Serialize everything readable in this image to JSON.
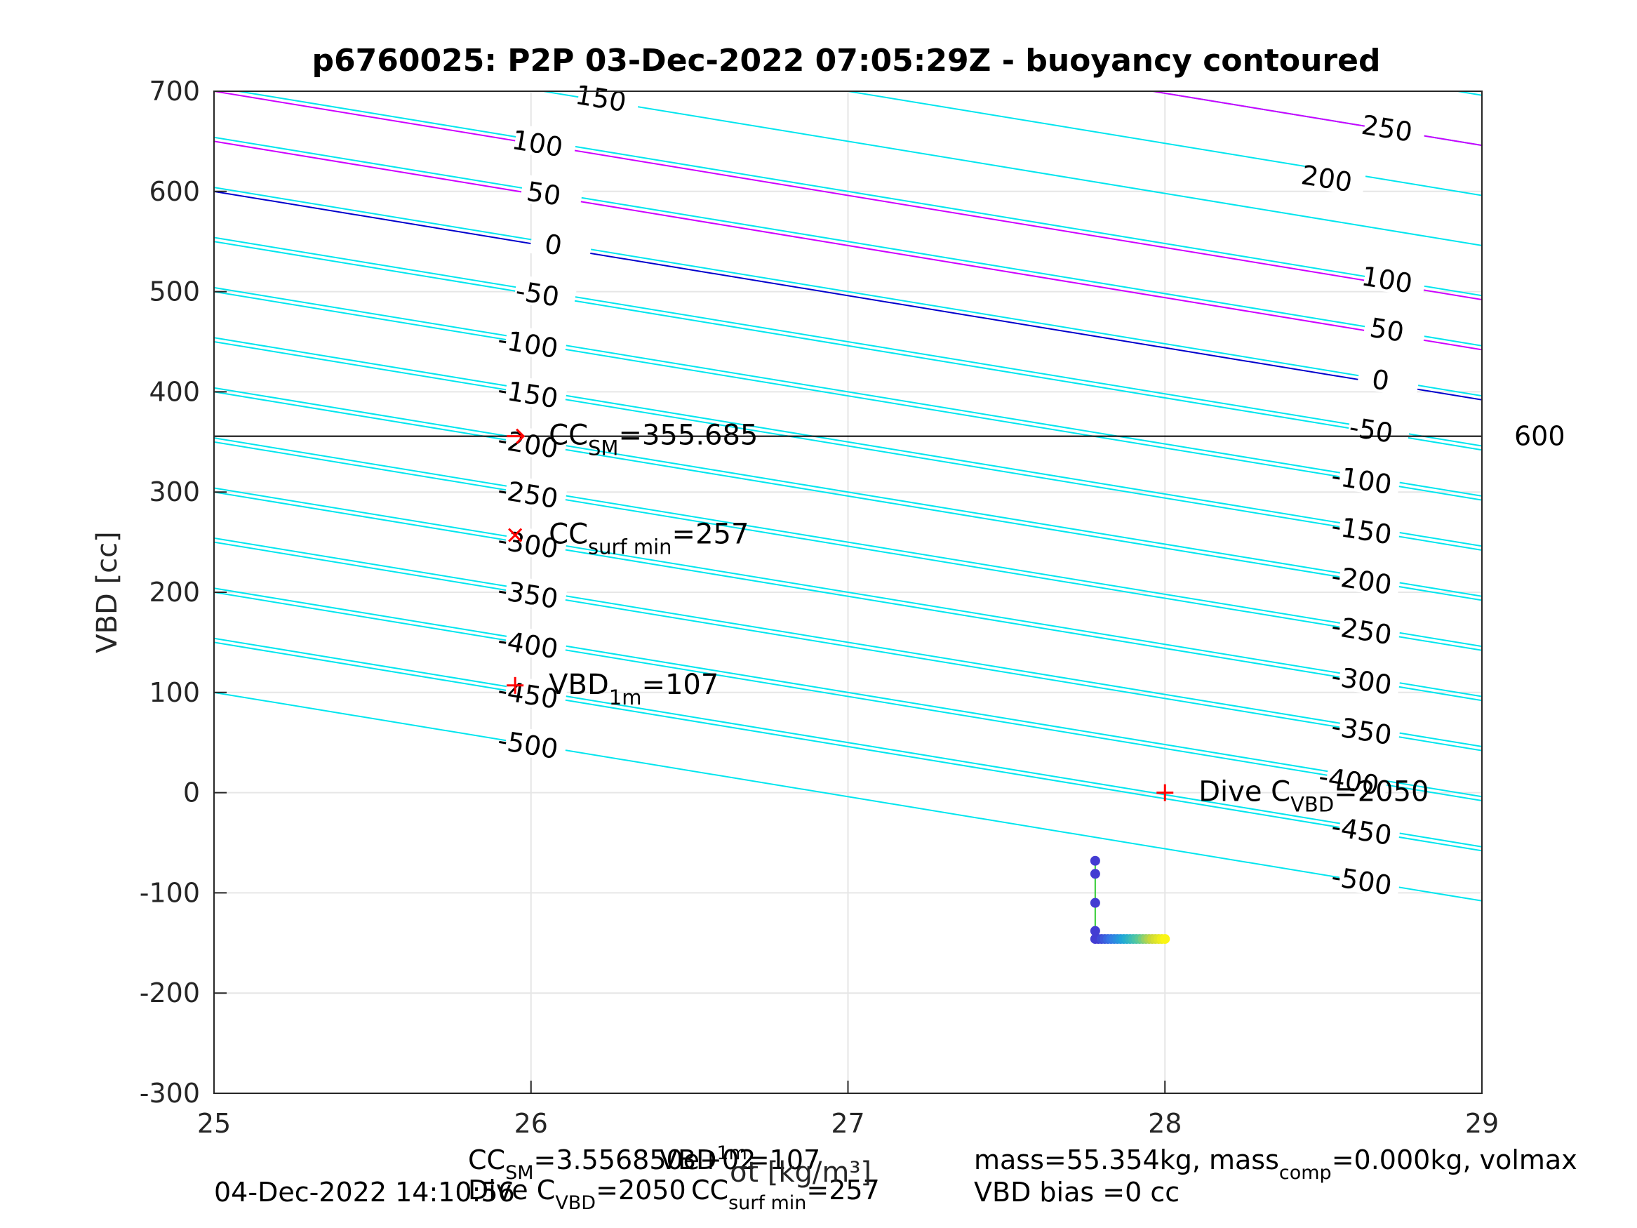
{
  "chart_data": {
    "type": "line",
    "title": "p6760025: P2P 03-Dec-2022 07:05:29Z - buoyancy contoured",
    "xlabel": "σt [kg/m³]",
    "ylabel": "VBD [cc]",
    "xlim": [
      25,
      29
    ],
    "ylim": [
      -300,
      700
    ],
    "x_ticks": [
      "25",
      "26",
      "27",
      "28",
      "29"
    ],
    "y_ticks": [
      "-300",
      "-200",
      "-100",
      "0",
      "100",
      "200",
      "300",
      "400",
      "500",
      "600",
      "700"
    ],
    "grid": true,
    "legend": "none",
    "contours": {
      "slope_cc_per_unit": -52,
      "intercepts_at_x25": [
        700,
        650,
        600,
        550,
        500,
        450,
        400,
        350,
        300,
        250,
        200,
        150,
        100
      ],
      "extended_intercepts_at_x25": [
        954,
        904,
        854,
        804,
        754,
        704,
        654,
        604,
        554,
        504,
        454,
        404,
        354,
        304,
        254,
        204,
        154
      ],
      "positive_color": "#cc00ff",
      "zero_color": "#0000cc",
      "negative_color": "#00e5ee",
      "left_labels": [
        {
          "text": "150",
          "x": 26.22,
          "y": 692
        },
        {
          "text": "100",
          "x": 26.02,
          "y": 647
        },
        {
          "text": "50",
          "x": 26.04,
          "y": 597
        },
        {
          "text": "0",
          "x": 26.07,
          "y": 546
        },
        {
          "text": "-50",
          "x": 26.02,
          "y": 497
        },
        {
          "text": "-100",
          "x": 25.99,
          "y": 447
        },
        {
          "text": "-150",
          "x": 25.99,
          "y": 397
        },
        {
          "text": "-200",
          "x": 25.99,
          "y": 347
        },
        {
          "text": "-250",
          "x": 25.99,
          "y": 297
        },
        {
          "text": "-300",
          "x": 25.99,
          "y": 247
        },
        {
          "text": "-350",
          "x": 25.99,
          "y": 197
        },
        {
          "text": "-400",
          "x": 25.99,
          "y": 147
        },
        {
          "text": "-450",
          "x": 25.99,
          "y": 97
        },
        {
          "text": "-500",
          "x": 25.99,
          "y": 47
        }
      ],
      "right_labels": [
        {
          "text": "250",
          "x": 28.7,
          "y": 662
        },
        {
          "text": "200",
          "x": 28.51,
          "y": 612
        },
        {
          "text": "100",
          "x": 28.7,
          "y": 511
        },
        {
          "text": "50",
          "x": 28.7,
          "y": 461
        },
        {
          "text": "0",
          "x": 28.68,
          "y": 411
        },
        {
          "text": "-50",
          "x": 28.65,
          "y": 361
        },
        {
          "text": "-100",
          "x": 28.62,
          "y": 311
        },
        {
          "text": "-150",
          "x": 28.62,
          "y": 261
        },
        {
          "text": "-200",
          "x": 28.62,
          "y": 211
        },
        {
          "text": "-250",
          "x": 28.62,
          "y": 161
        },
        {
          "text": "-300",
          "x": 28.62,
          "y": 111
        },
        {
          "text": "-350",
          "x": 28.62,
          "y": 61
        },
        {
          "text": "-400",
          "x": 28.58,
          "y": 11
        },
        {
          "text": "-450",
          "x": 28.62,
          "y": -39
        },
        {
          "text": "-500",
          "x": 28.62,
          "y": -89
        }
      ]
    },
    "hline": {
      "y": 355.685,
      "label": "600"
    },
    "markers": [
      {
        "name": "CC_SM",
        "x": 25.95,
        "y": 355.685,
        "symbol": "arrow",
        "label_main": "CC",
        "label_sub": "SM",
        "label_tail": "=355.685"
      },
      {
        "name": "CC_surf_min",
        "x": 25.95,
        "y": 257,
        "symbol": "x",
        "label_main": "CC",
        "label_sub": "surf min",
        "label_tail": "=257"
      },
      {
        "name": "VBD_1m",
        "x": 25.95,
        "y": 107,
        "symbol": "plus",
        "label_main": "VBD",
        "label_sub": "1m",
        "label_tail": "=107"
      },
      {
        "name": "Dive_C_VBD",
        "x": 28,
        "y": 0,
        "symbol": "plus",
        "label_main": "Dive C",
        "label_sub": "VBD",
        "label_tail": "=2050"
      }
    ],
    "marker_color": "#ff0000",
    "profile_line_color": "#33cc33",
    "profile": {
      "x": [
        27.78,
        27.78,
        27.78,
        27.78,
        27.78,
        27.79,
        27.8,
        27.81,
        27.82,
        27.83,
        27.84,
        27.85,
        27.86,
        27.87,
        27.88,
        27.89,
        27.9,
        27.91,
        27.92,
        27.93,
        27.94,
        27.95,
        27.96,
        27.97,
        27.98,
        27.99,
        28.0
      ],
      "y": [
        -68,
        -81,
        -110,
        -138,
        -146,
        -146,
        -146,
        -146,
        -146,
        -146,
        -146,
        -146,
        -146,
        -146,
        -146,
        -146,
        -146,
        -146,
        -146,
        -146,
        -146,
        -146,
        -146,
        -146,
        -146,
        -146,
        -146
      ]
    }
  },
  "footer": {
    "line1_main": "CC",
    "line1_sub": "SM",
    "line1_tail": "=3.556850e+02",
    "line2_main": "Dive C",
    "line2_sub": "VBD",
    "line2_tail": "=2050",
    "vbd_main": "VBD",
    "vbd_sub": "1m",
    "vbd_tail": "=107",
    "surf_main": "CC",
    "surf_sub": "surf min",
    "surf_tail": "=257",
    "timestamp": "04-Dec-2022 14:10:56",
    "mass_a": "mass=55.354kg, mass",
    "mass_sub": "comp",
    "mass_b": "=0.000kg, volmax",
    "vbd_bias": "VBD bias =0 cc"
  }
}
